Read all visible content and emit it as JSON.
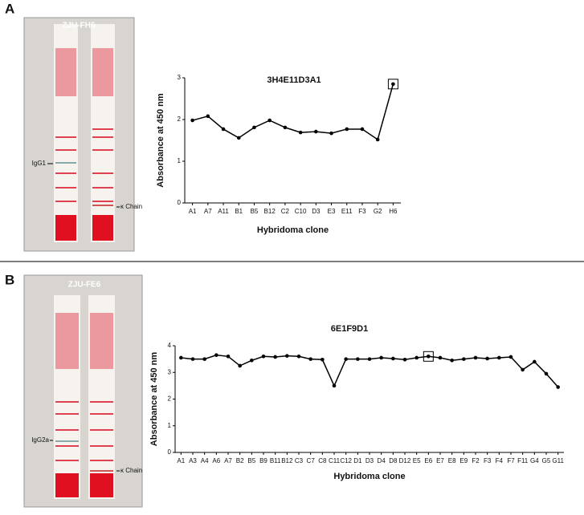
{
  "figure": {
    "panels": [
      {
        "label": "A",
        "strip_title": "ZJU-FH6",
        "annotations": [
          "IgG1",
          "κ Chain"
        ]
      },
      {
        "label": "B",
        "strip_title": "ZJU-FE6",
        "annotations": [
          "IgG2a",
          "κ Chain"
        ]
      }
    ]
  },
  "chart_data": [
    {
      "type": "line",
      "title": "3H4E11D3A1",
      "y_label": "Absorbance at 450 nm",
      "x_label": "Hybridoma clone",
      "categories": [
        "A1",
        "A7",
        "A11",
        "B1",
        "B5",
        "B12",
        "C2",
        "C10",
        "D3",
        "E3",
        "E11",
        "F3",
        "G2",
        "H6"
      ],
      "values": [
        1.98,
        2.08,
        1.77,
        1.56,
        1.81,
        1.98,
        1.81,
        1.69,
        1.71,
        1.67,
        1.77,
        1.77,
        1.52,
        2.85
      ],
      "color": "#000000",
      "ylim": [
        0,
        3
      ],
      "yticks": [
        0,
        1,
        2,
        3
      ],
      "highlight": "H6"
    },
    {
      "type": "line",
      "title": "6E1F9D1",
      "y_label": "Absorbance at 450 nm",
      "x_label": "Hybridoma clone",
      "categories": [
        "A1",
        "A3",
        "A4",
        "A6",
        "A7",
        "B2",
        "B5",
        "B9",
        "B11",
        "B12",
        "C3",
        "C7",
        "C8",
        "C11",
        "C12",
        "D1",
        "D3",
        "D4",
        "D8",
        "D12",
        "E5",
        "E6",
        "E7",
        "E8",
        "E9",
        "F2",
        "F3",
        "F4",
        "F7",
        "F11",
        "G4",
        "G5",
        "G11"
      ],
      "values": [
        3.55,
        3.5,
        3.5,
        3.65,
        3.6,
        3.25,
        3.45,
        3.6,
        3.58,
        3.62,
        3.6,
        3.5,
        3.48,
        2.5,
        3.5,
        3.5,
        3.5,
        3.55,
        3.52,
        3.48,
        3.55,
        3.6,
        3.55,
        3.45,
        3.5,
        3.55,
        3.52,
        3.55,
        3.58,
        3.1,
        3.4,
        2.95,
        2.45
      ],
      "color": "#000000",
      "ylim": [
        0,
        4
      ],
      "yticks": [
        0,
        1,
        2,
        3,
        4
      ],
      "highlight": "E6"
    }
  ]
}
